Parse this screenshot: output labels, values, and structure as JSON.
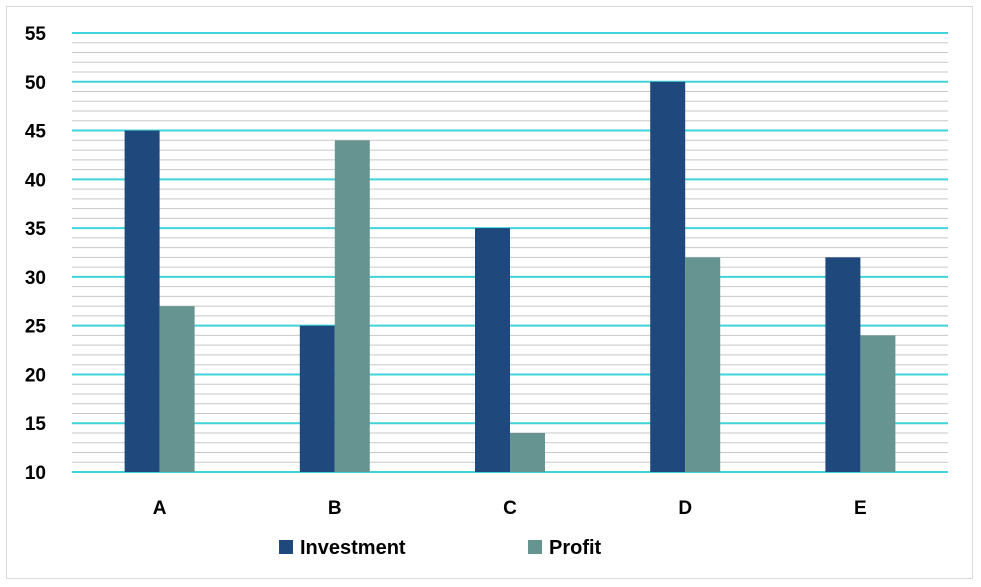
{
  "chart_data": {
    "type": "bar",
    "categories": [
      "A",
      "B",
      "C",
      "D",
      "E"
    ],
    "series": [
      {
        "name": "Investment",
        "values": [
          45,
          25,
          35,
          50,
          32
        ],
        "color": "#1f497d"
      },
      {
        "name": "Profit",
        "values": [
          27,
          44,
          14,
          32,
          24
        ],
        "color": "#669490"
      }
    ],
    "ylim": [
      10,
      55
    ],
    "yticks": [
      10,
      15,
      20,
      25,
      30,
      35,
      40,
      45,
      50,
      55
    ],
    "minor_step": 1,
    "major_grid_color": "#3fd4dc",
    "minor_grid_color": "#c8c8c8",
    "grid": true,
    "legend_position": "bottom"
  }
}
